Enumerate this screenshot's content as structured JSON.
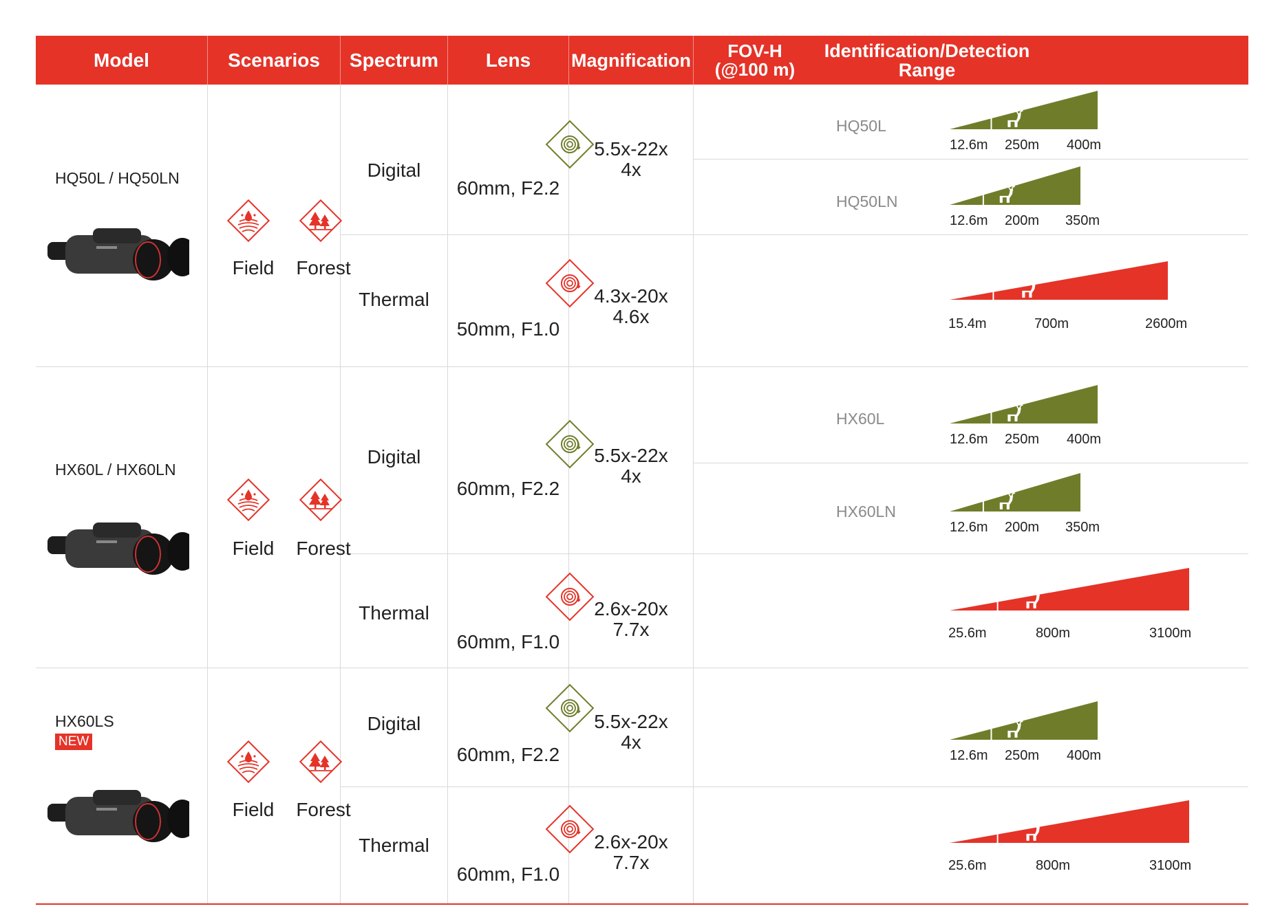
{
  "header": {
    "model": "Model",
    "scenarios": "Scenarios",
    "spectrum": "Spectrum",
    "lens": "Lens",
    "magnification": "Magnification",
    "fov_line1": "FOV-H",
    "fov_line2": "(@100 m)",
    "range": "Identification/Detection Range"
  },
  "colors": {
    "accent": "#e53328",
    "digital": "#6f7d2a",
    "thermal": "#e53328",
    "grid": "#d9d9d9",
    "sublabel": "#8a8a8a"
  },
  "icons": {
    "field": "field-scenario-icon",
    "forest": "forest-scenario-icon",
    "lens": "lens-icon",
    "deer": "deer-icon",
    "device": "binocular-device-image"
  },
  "groups": [
    {
      "model": "HQ50L / HQ50LN",
      "badge": "",
      "scenarios": [
        "Field",
        "Forest"
      ],
      "digital": {
        "spectrum": "Digital",
        "lens": "60mm, F2.2",
        "mag1": "5.5x-22x",
        "mag2": "4x",
        "variants": [
          {
            "name": "HQ50L",
            "fov": "12.6m",
            "identification": "250m",
            "detection": "400m"
          },
          {
            "name": "HQ50LN",
            "fov": "12.6m",
            "identification": "200m",
            "detection": "350m"
          }
        ]
      },
      "thermal": {
        "spectrum": "Thermal",
        "lens": "50mm, F1.0",
        "mag1": "4.3x-20x",
        "mag2": "4.6x",
        "fov": "15.4m",
        "identification": "700m",
        "detection": "2600m"
      }
    },
    {
      "model": "HX60L / HX60LN",
      "badge": "",
      "scenarios": [
        "Field",
        "Forest"
      ],
      "digital": {
        "spectrum": "Digital",
        "lens": "60mm, F2.2",
        "mag1": "5.5x-22x",
        "mag2": "4x",
        "variants": [
          {
            "name": "HX60L",
            "fov": "12.6m",
            "identification": "250m",
            "detection": "400m"
          },
          {
            "name": "HX60LN",
            "fov": "12.6m",
            "identification": "200m",
            "detection": "350m"
          }
        ]
      },
      "thermal": {
        "spectrum": "Thermal",
        "lens": "60mm, F1.0",
        "mag1": "2.6x-20x",
        "mag2": "7.7x",
        "fov": "25.6m",
        "identification": "800m",
        "detection": "3100m"
      }
    },
    {
      "model": "HX60LS",
      "badge": "NEW",
      "scenarios": [
        "Field",
        "Forest"
      ],
      "digital": {
        "spectrum": "Digital",
        "lens": "60mm, F2.2",
        "mag1": "5.5x-22x",
        "mag2": "4x",
        "variants": [
          {
            "name": "",
            "fov": "12.6m",
            "identification": "250m",
            "detection": "400m"
          }
        ]
      },
      "thermal": {
        "spectrum": "Thermal",
        "lens": "60mm, F1.0",
        "mag1": "2.6x-20x",
        "mag2": "7.7x",
        "fov": "25.6m",
        "identification": "800m",
        "detection": "3100m"
      }
    }
  ]
}
